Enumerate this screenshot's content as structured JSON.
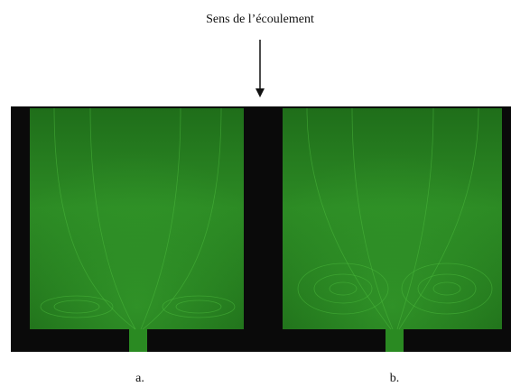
{
  "header": {
    "title": "Sens de l’écoulement"
  },
  "panels": [
    {
      "label": "a."
    },
    {
      "label": "b."
    }
  ]
}
